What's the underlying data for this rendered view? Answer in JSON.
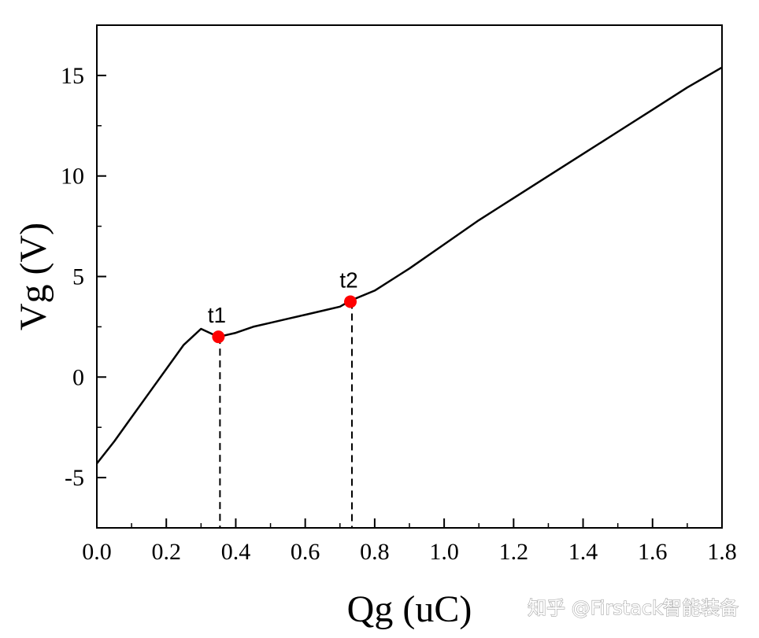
{
  "chart_data": {
    "type": "line",
    "xlabel": "Qg (uC)",
    "ylabel": "Vg (V)",
    "xlim": [
      0.0,
      1.8
    ],
    "ylim": [
      -7.5,
      17.5
    ],
    "x_ticks": [
      "0.0",
      "0.2",
      "0.4",
      "0.6",
      "0.8",
      "1.0",
      "1.2",
      "1.4",
      "1.6",
      "1.8"
    ],
    "y_ticks": [
      "-5",
      "0",
      "5",
      "10",
      "15"
    ],
    "x_tick_values": [
      0.0,
      0.2,
      0.4,
      0.6,
      0.8,
      1.0,
      1.2,
      1.4,
      1.6,
      1.8
    ],
    "y_tick_values": [
      -5,
      0,
      5,
      10,
      15
    ],
    "x_minor_ticks": [
      0.1,
      0.3,
      0.5,
      0.7,
      0.9,
      1.1,
      1.3,
      1.5,
      1.7
    ],
    "y_minor_ticks": [
      -7.5,
      -2.5,
      2.5,
      7.5,
      12.5,
      17.5
    ],
    "grid": false,
    "series": [
      {
        "color": "#000000",
        "x": [
          0.0,
          0.05,
          0.1,
          0.15,
          0.2,
          0.25,
          0.3,
          0.35,
          0.4,
          0.45,
          0.5,
          0.55,
          0.6,
          0.65,
          0.7,
          0.73,
          0.8,
          0.9,
          1.0,
          1.1,
          1.2,
          1.3,
          1.4,
          1.5,
          1.6,
          1.7,
          1.8
        ],
        "y": [
          -4.3,
          -3.2,
          -2.0,
          -0.8,
          0.4,
          1.6,
          2.4,
          2.0,
          2.2,
          2.5,
          2.7,
          2.9,
          3.1,
          3.3,
          3.5,
          3.8,
          4.3,
          5.4,
          6.6,
          7.8,
          8.9,
          10.0,
          11.1,
          12.2,
          13.3,
          14.4,
          15.4
        ]
      }
    ],
    "annotations": [
      {
        "label": "t1",
        "x": 0.35,
        "y": 2.0,
        "color": "#ff0000",
        "dashed_drop": true
      },
      {
        "label": "t2",
        "x": 0.73,
        "y": 3.75,
        "color": "#ff0000",
        "dashed_drop": true
      }
    ]
  },
  "watermark": {
    "text": "知乎 @Firstack智能装备"
  }
}
